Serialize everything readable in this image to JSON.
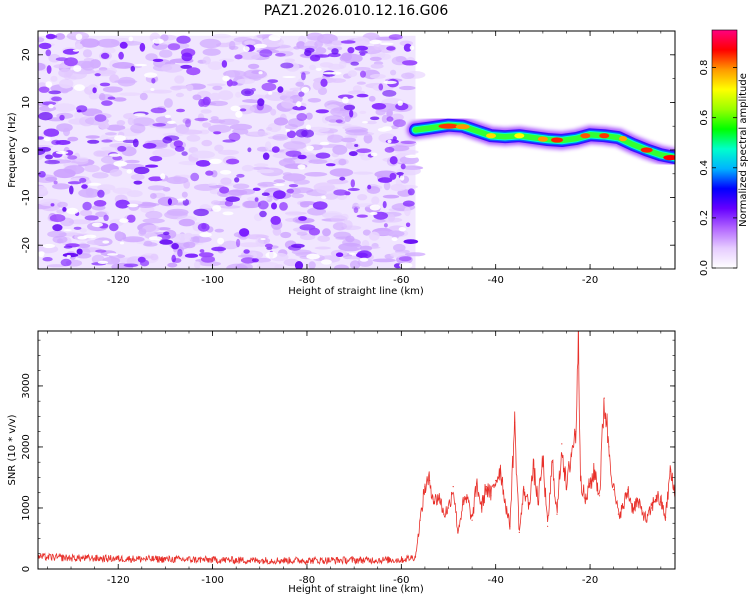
{
  "title": "PAZ1.2026.010.12.16.G06",
  "chart_data": [
    {
      "type": "heatmap",
      "name": "spectrogram",
      "title": "PAZ1.2026.010.12.16.G06",
      "xlabel": "Height of straight line (km)",
      "ylabel": "Frequency (Hz)",
      "xlim": [
        -137,
        -2
      ],
      "ylim": [
        -25,
        25
      ],
      "x_ticks": [
        -120,
        -100,
        -80,
        -60,
        -40,
        -20
      ],
      "y_ticks": [
        -20,
        -10,
        0,
        10,
        20
      ],
      "noise_region": {
        "x_range": [
          -137,
          -57
        ],
        "y_range": [
          -25,
          24
        ]
      },
      "signal_track": {
        "x": [
          -57,
          -54,
          -50,
          -47,
          -44,
          -41,
          -38,
          -35,
          -32,
          -29,
          -26,
          -23,
          -20,
          -17,
          -14,
          -11,
          -8,
          -5,
          -2
        ],
        "y": [
          4.2,
          4.6,
          5.2,
          5.0,
          4.0,
          3.0,
          2.8,
          3.0,
          2.6,
          2.2,
          2.0,
          2.4,
          3.2,
          3.0,
          2.6,
          1.2,
          0,
          -1.0,
          -1.6
        ]
      },
      "colorbar": {
        "label": "Normalized spectral amplitude",
        "range": [
          0.0,
          0.95
        ],
        "ticks": [
          0.0,
          0.2,
          0.4,
          0.6,
          0.8
        ],
        "tick_labels": [
          "0.0",
          "0.2",
          "0.4",
          "0.6",
          "0.8"
        ],
        "colors": [
          "#ffffff",
          "#e6ccff",
          "#b266ff",
          "#6600ff",
          "#0000ff",
          "#00b3ff",
          "#00ffcc",
          "#00ff00",
          "#99ff00",
          "#ffff00",
          "#ff9900",
          "#ff0000",
          "#ff0080"
        ]
      }
    },
    {
      "type": "line",
      "name": "snr",
      "xlabel": "Height of straight line (km)",
      "ylabel": "SNR (10 * v/v)",
      "xlim": [
        -137,
        -2
      ],
      "ylim": [
        0,
        3900
      ],
      "x_ticks": [
        -120,
        -100,
        -80,
        -60,
        -40,
        -20
      ],
      "y_ticks": [
        0,
        1000,
        2000,
        3000
      ],
      "color": "#e8302a",
      "series": [
        {
          "name": "SNR",
          "x": [
            -137,
            -130,
            -120,
            -110,
            -100,
            -90,
            -80,
            -70,
            -60,
            -57,
            -56,
            -55,
            -54,
            -53,
            -52,
            -51,
            -50,
            -49,
            -48,
            -47,
            -46,
            -45,
            -44,
            -43,
            -42,
            -41,
            -40,
            -39,
            -38,
            -37,
            -36,
            -35,
            -34,
            -33,
            -32,
            -31,
            -30,
            -29,
            -28,
            -27,
            -26,
            -25,
            -24,
            -23,
            -22.5,
            -22,
            -21,
            -20,
            -19,
            -18,
            -17,
            -16,
            -15,
            -14,
            -13,
            -12,
            -11,
            -10,
            -9,
            -8,
            -7,
            -6,
            -5,
            -4,
            -3,
            -2
          ],
          "values": [
            200,
            180,
            170,
            160,
            150,
            140,
            140,
            145,
            150,
            200,
            800,
            1350,
            1450,
            1100,
            1200,
            900,
            1000,
            1350,
            600,
            1050,
            1150,
            800,
            1400,
            1000,
            1350,
            1200,
            1450,
            1650,
            1100,
            700,
            2400,
            600,
            1300,
            1050,
            1650,
            1100,
            1800,
            700,
            1750,
            900,
            2050,
            1300,
            1900,
            2250,
            3900,
            1500,
            1100,
            1400,
            1600,
            1200,
            2800,
            2000,
            1300,
            900,
            1000,
            1300,
            1000,
            1100,
            950,
            800,
            1000,
            1200,
            1100,
            850,
            1600,
            1200
          ]
        }
      ]
    }
  ]
}
